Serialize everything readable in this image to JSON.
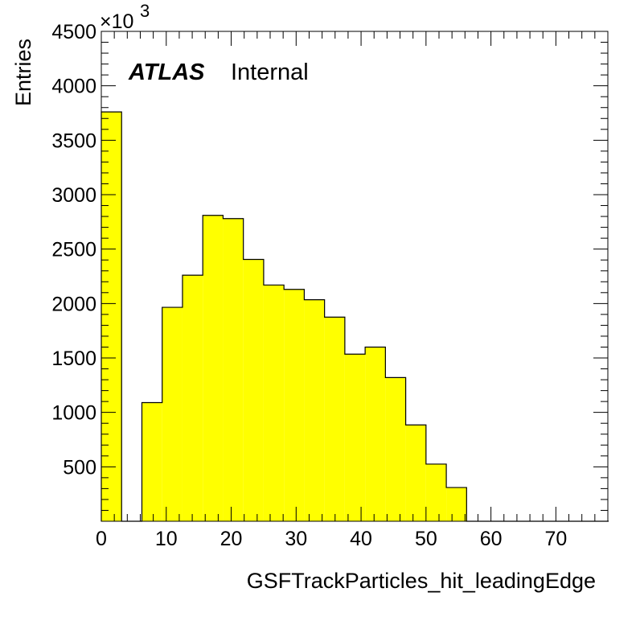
{
  "chart_data": {
    "type": "bar",
    "style": "histogram",
    "xlabel": "GSFTrackParticles_hit_leadingEdge",
    "ylabel": "Entries",
    "y_scale_label": "×10",
    "y_scale_exponent": "3",
    "annotation": {
      "bold": "ATLAS",
      "normal": "Internal"
    },
    "xlim": [
      0,
      78
    ],
    "ylim": [
      0,
      4500
    ],
    "x_ticks": [
      0,
      10,
      20,
      30,
      40,
      50,
      60,
      70
    ],
    "y_ticks": [
      500,
      1000,
      1500,
      2000,
      2500,
      3000,
      3500,
      4000,
      4500
    ],
    "bin_width": 3.125,
    "bin_edges_start": 0,
    "values": [
      3760,
      0,
      1090,
      1965,
      2260,
      2810,
      2780,
      2405,
      2170,
      2130,
      2035,
      1875,
      1535,
      1600,
      1320,
      885,
      525,
      310,
      0,
      0,
      0,
      0,
      0,
      0,
      0
    ],
    "fill_color": "#ffff00",
    "line_color": "#000000",
    "grid": false
  }
}
